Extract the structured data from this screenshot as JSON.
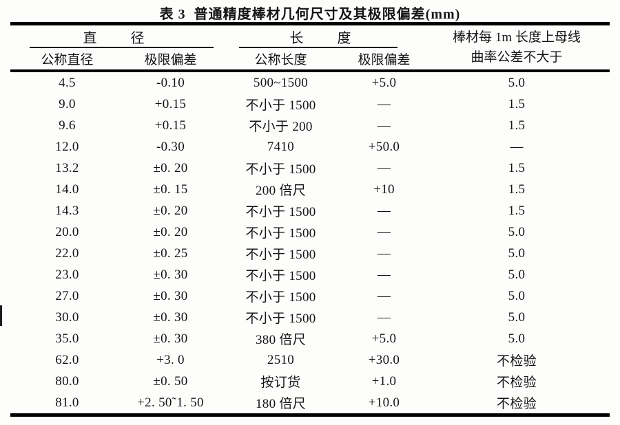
{
  "title": "表 3  普通精度棒材几何尺寸及其极限偏差(mm)",
  "table": {
    "group_headers": {
      "diameter": "直 径",
      "length": "长 度",
      "curvature_line1": "棒材每 1m 长度上母线",
      "curvature_line2": "曲率公差不大于"
    },
    "subheaders": {
      "nominal_diameter": "公称直径",
      "diameter_deviation": "极限偏差",
      "nominal_length": "公称长度",
      "length_deviation": "极限偏差"
    },
    "columns": [
      "公称直径",
      "极限偏差",
      "公称长度",
      "极限偏差",
      "棒材每1m长度上母线曲率公差不大于"
    ],
    "rows": [
      [
        "4.5",
        "-0.10",
        "500~1500",
        "+5.0",
        "5.0"
      ],
      [
        "9.0",
        "+0.15",
        "不小于 1500",
        "—",
        "1.5"
      ],
      [
        "9.6",
        "+0.15",
        "不小于 200",
        "—",
        "1.5"
      ],
      [
        "12.0",
        "-0.30",
        "7410",
        "+50.0",
        "—"
      ],
      [
        "13.2",
        "±0. 20",
        "不小于 1500",
        "—",
        "1.5"
      ],
      [
        "14.0",
        "±0. 15",
        "200 倍尺",
        "+10",
        "1.5"
      ],
      [
        "14.3",
        "±0. 20",
        "不小于 1500",
        "—",
        "1.5"
      ],
      [
        "20.0",
        "±0. 20",
        "不小于 1500",
        "—",
        "5.0"
      ],
      [
        "22.0",
        "±0. 25",
        "不小于 1500",
        "—",
        "5.0"
      ],
      [
        "23.0",
        "±0. 30",
        "不小于 1500",
        "—",
        "5.0"
      ],
      [
        "27.0",
        "±0. 30",
        "不小于 1500",
        "—",
        "5.0"
      ],
      [
        "30.0",
        "±0. 30",
        "不小于 1500",
        "—",
        "5.0"
      ],
      [
        "35.0",
        "±0. 30",
        "380 倍尺",
        "+5.0",
        "5.0"
      ],
      [
        "62.0",
        "+3. 0",
        "2510",
        "+30.0",
        "不检验"
      ],
      [
        "80.0",
        "±0. 50",
        "按订货",
        "+1.0",
        "不检验"
      ],
      [
        "81.0",
        "+2. 50˜1. 50",
        "180 倍尺",
        "+10.0",
        "不检验"
      ]
    ]
  },
  "colors": {
    "ink": "#141414",
    "rule": "#000000",
    "paper": "#fdfdfc"
  }
}
